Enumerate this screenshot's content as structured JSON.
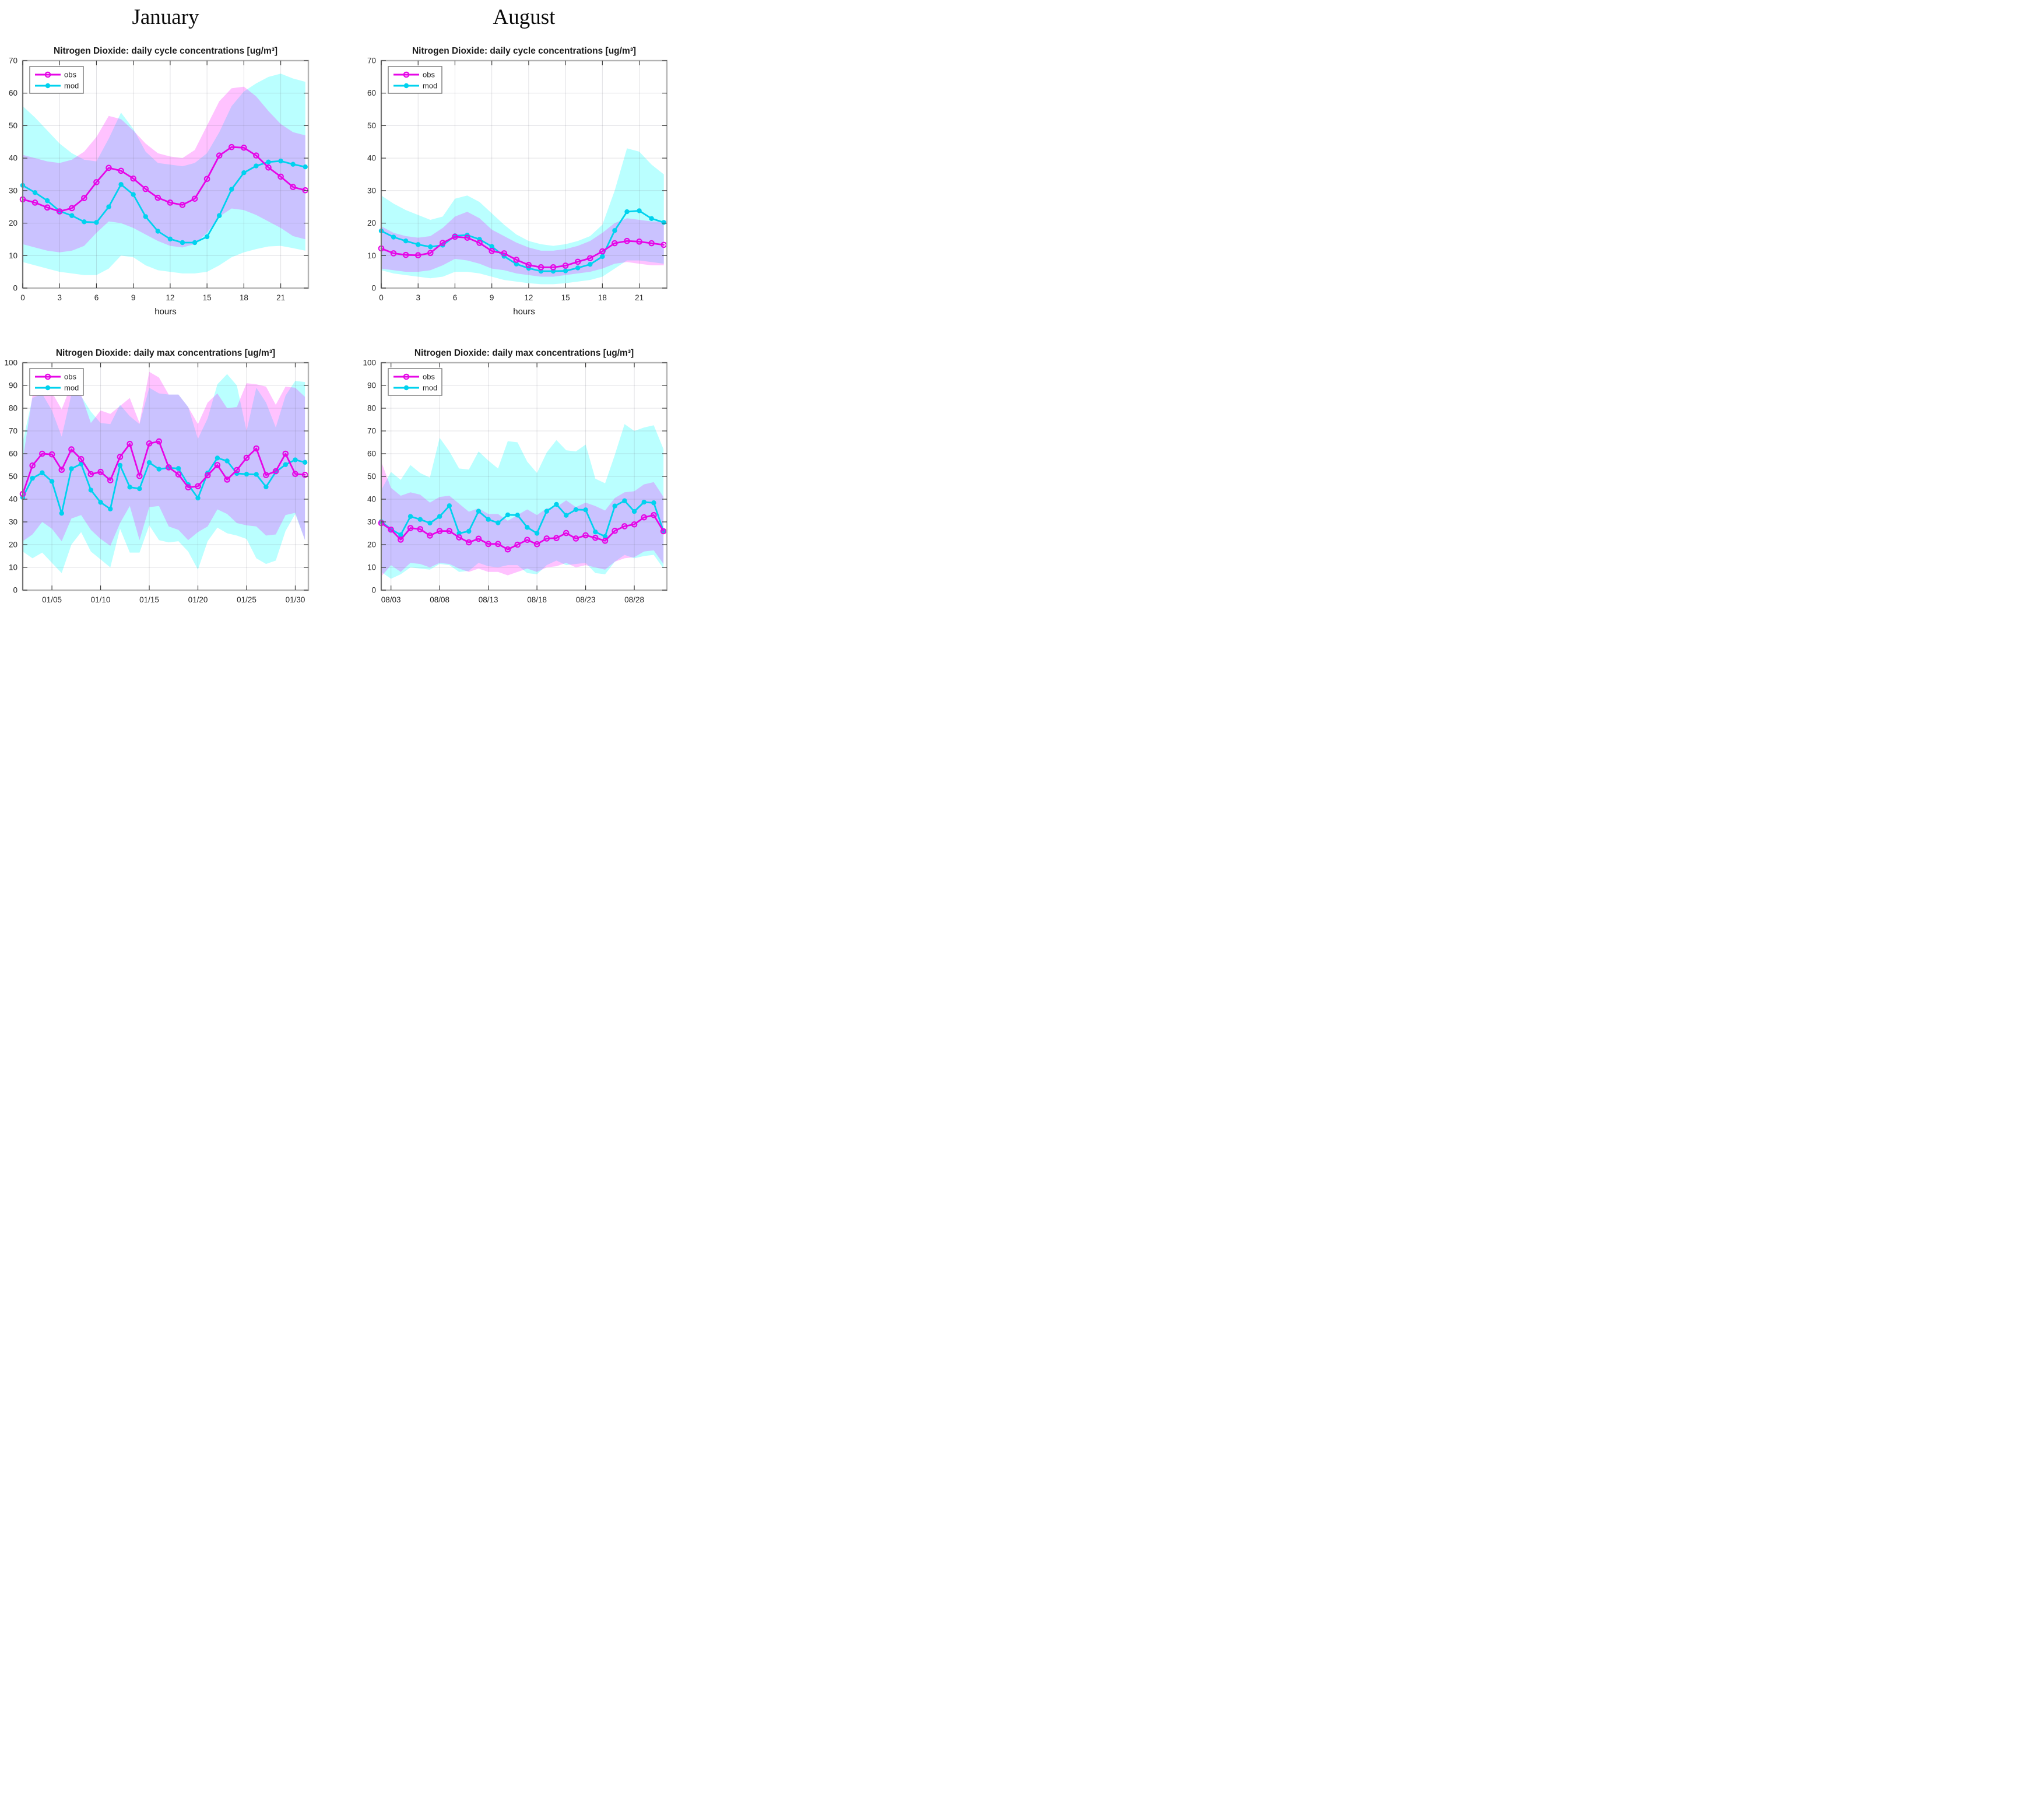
{
  "months": {
    "left": "January",
    "right": "August"
  },
  "legend": {
    "obs_label": "obs",
    "mod_label": "mod"
  },
  "colors": {
    "obs_line": "#e606e6",
    "mod_line": "#00d2ee",
    "obs_band": "rgba(255,0,255,0.24)",
    "mod_band": "rgba(0,255,255,0.27)",
    "grid": "rgba(105,105,120,0.20)",
    "box": "#b3b3b3",
    "axis": "#5f5f5f",
    "tick": "#3a3a3a",
    "tick_label": "#262626",
    "title": "#1a1a1a"
  },
  "chart_data": [
    {
      "id": "january-daily-cycle",
      "type": "line",
      "title": "Nitrogen Dioxide: daily cycle concentrations [ug/m³]",
      "xlabel": "hours",
      "xlim": [
        0,
        23.25
      ],
      "ylim": [
        0,
        70
      ],
      "xticks": [
        0,
        3,
        6,
        9,
        12,
        15,
        18,
        21
      ],
      "xtick_labels": [
        "0",
        "3",
        "6",
        "9",
        "12",
        "15",
        "18",
        "21"
      ],
      "yticks": [
        0,
        10,
        20,
        30,
        40,
        50,
        60,
        70
      ],
      "x": [
        0,
        1,
        2,
        3,
        4,
        5,
        6,
        7,
        8,
        9,
        10,
        11,
        12,
        13,
        14,
        15,
        16,
        17,
        18,
        19,
        20,
        21,
        22,
        23
      ],
      "series": [
        {
          "name": "obs",
          "values": [
            27.3,
            26.3,
            24.8,
            23.6,
            24.6,
            27.7,
            32.6,
            37.0,
            36.1,
            33.7,
            30.5,
            27.8,
            26.3,
            25.6,
            27.5,
            33.6,
            40.8,
            43.4,
            43.2,
            40.8,
            37.1,
            34.3,
            31.1,
            30.1
          ],
          "band_hi": [
            41,
            40,
            39,
            38.5,
            39.5,
            42,
            46.5,
            53,
            52,
            48.5,
            44.5,
            41.5,
            40.5,
            40,
            42.5,
            50,
            57.5,
            61.5,
            62,
            59,
            54.5,
            50.5,
            48,
            47
          ],
          "band_lo": [
            13.5,
            12.5,
            11.5,
            11,
            11.5,
            13,
            17,
            20.5,
            20,
            18.5,
            16.5,
            14.5,
            13,
            12.5,
            13.5,
            17,
            22,
            24.5,
            24,
            22.5,
            20.5,
            18.5,
            16,
            15
          ]
        },
        {
          "name": "mod",
          "values": [
            31.6,
            29.4,
            26.9,
            23.7,
            22.3,
            20.4,
            20.2,
            25.0,
            31.9,
            28.8,
            22.0,
            17.5,
            15.1,
            14.0,
            14.0,
            15.8,
            22.3,
            30.4,
            35.5,
            37.6,
            38.8,
            39.1,
            38.1,
            37.3
          ],
          "band_hi": [
            56,
            52.5,
            48.5,
            44.5,
            41.5,
            39.5,
            39,
            46,
            54,
            49,
            42,
            38.5,
            38,
            37.5,
            38.5,
            41.5,
            48,
            56,
            60.5,
            63,
            65,
            66,
            64.5,
            63.5
          ],
          "band_lo": [
            8,
            7,
            6,
            5,
            4.5,
            4,
            4,
            6,
            10,
            9.5,
            7,
            5.5,
            5,
            4.5,
            4.5,
            5,
            7,
            9.5,
            11,
            12,
            12.8,
            13,
            12.3,
            11.5
          ]
        }
      ]
    },
    {
      "id": "august-daily-cycle",
      "type": "line",
      "title": "Nitrogen Dioxide: daily cycle concentrations [ug/m³]",
      "xlabel": "hours",
      "xlim": [
        0,
        23.25
      ],
      "ylim": [
        0,
        70
      ],
      "xticks": [
        0,
        3,
        6,
        9,
        12,
        15,
        18,
        21
      ],
      "xtick_labels": [
        "0",
        "3",
        "6",
        "9",
        "12",
        "15",
        "18",
        "21"
      ],
      "yticks": [
        0,
        10,
        20,
        30,
        40,
        50,
        60,
        70
      ],
      "x": [
        0,
        1,
        2,
        3,
        4,
        5,
        6,
        7,
        8,
        9,
        10,
        11,
        12,
        13,
        14,
        15,
        16,
        17,
        18,
        19,
        20,
        21,
        22,
        23
      ],
      "series": [
        {
          "name": "obs",
          "values": [
            12.2,
            10.7,
            10.2,
            10.1,
            10.8,
            13.9,
            15.8,
            15.5,
            13.9,
            11.4,
            10.7,
            8.7,
            7.1,
            6.4,
            6.4,
            6.9,
            8.1,
            9.2,
            11.3,
            13.8,
            14.5,
            14.3,
            13.8,
            13.3
          ],
          "band_hi": [
            19,
            17,
            16,
            15.5,
            16,
            18.5,
            22,
            23.5,
            21.5,
            18,
            16,
            14,
            12.5,
            11.5,
            11.5,
            12,
            13,
            14.5,
            17,
            20,
            21.5,
            21,
            20.5,
            20.5
          ],
          "band_lo": [
            6,
            5.5,
            5,
            5,
            5.5,
            7,
            9,
            8.5,
            7.5,
            6,
            5.5,
            4.5,
            4,
            3.5,
            3.5,
            4,
            4.5,
            5,
            6,
            7.5,
            8,
            7.5,
            7,
            7
          ]
        },
        {
          "name": "mod",
          "values": [
            17.6,
            15.7,
            14.5,
            13.4,
            12.7,
            13.2,
            16.1,
            16.3,
            15.0,
            12.8,
            9.8,
            7.4,
            6.1,
            5.2,
            5.2,
            5.3,
            6.2,
            7.3,
            9.7,
            17.7,
            23.5,
            23.8,
            21.4,
            20.2
          ],
          "band_hi": [
            28.5,
            26,
            24,
            22.5,
            21,
            22,
            27.5,
            28.5,
            26.5,
            23,
            19.5,
            16.5,
            14.5,
            13.5,
            13,
            13.5,
            14.5,
            16,
            19.5,
            30,
            43,
            42,
            38,
            35
          ],
          "band_lo": [
            5.5,
            4.5,
            4,
            3.5,
            3,
            3.5,
            5,
            5,
            4.5,
            3.5,
            2.5,
            2,
            1.5,
            1.2,
            1.2,
            1.5,
            2,
            2.5,
            3.5,
            6,
            8.5,
            8.5,
            8,
            7.5
          ]
        }
      ]
    },
    {
      "id": "january-daily-max",
      "type": "line",
      "title": "Nitrogen Dioxide: daily max concentrations [ug/m³]",
      "xlabel": "",
      "xlim": [
        2,
        31.35
      ],
      "ylim": [
        0,
        100
      ],
      "xticks": [
        5,
        10,
        15,
        20,
        25,
        30
      ],
      "xtick_labels": [
        "01/05",
        "01/10",
        "01/15",
        "01/20",
        "01/25",
        "01/30"
      ],
      "yticks": [
        0,
        10,
        20,
        30,
        40,
        50,
        60,
        70,
        80,
        90,
        100
      ],
      "x": [
        2,
        3,
        4,
        5,
        6,
        7,
        8,
        9,
        10,
        11,
        12,
        13,
        14,
        15,
        16,
        17,
        18,
        19,
        20,
        21,
        22,
        23,
        24,
        25,
        26,
        27,
        28,
        29,
        30,
        31
      ],
      "series": [
        {
          "name": "obs",
          "values": [
            42.3,
            54.8,
            60.0,
            59.7,
            52.9,
            61.9,
            57.6,
            51.0,
            52.0,
            48.3,
            58.6,
            64.3,
            50.2,
            64.5,
            65.4,
            54.0,
            50.9,
            45.2,
            45.7,
            50.5,
            55.0,
            48.6,
            52.8,
            58.2,
            62.3,
            50.6,
            52.3,
            60.0,
            51.1,
            50.7
          ],
          "band_hi": [
            57,
            85.5,
            89.5,
            87,
            79.5,
            90.5,
            86,
            73.5,
            79,
            77.5,
            81,
            84.5,
            73.5,
            96,
            93.5,
            86,
            86,
            80.5,
            73,
            82.5,
            86.5,
            80,
            80.5,
            91,
            90.5,
            89.5,
            81.5,
            89.5,
            89,
            85
          ],
          "band_lo": [
            21.5,
            24.5,
            30,
            27,
            21.5,
            31.5,
            33,
            26.5,
            22.5,
            19.5,
            29.5,
            37,
            22,
            36.5,
            37,
            28,
            26.5,
            22,
            25.5,
            28,
            35.5,
            33.5,
            29.5,
            28.5,
            28,
            24,
            24.5,
            33,
            34,
            22
          ]
        },
        {
          "name": "mod",
          "values": [
            40.8,
            49.2,
            51.6,
            47.8,
            33.8,
            53.4,
            55.5,
            44.0,
            38.6,
            35.7,
            54.9,
            45.3,
            44.6,
            56.1,
            53.2,
            53.8,
            53.5,
            46.4,
            40.5,
            51.5,
            58.1,
            56.8,
            51.3,
            51.0,
            50.9,
            45.4,
            52.0,
            55.2,
            57.3,
            56.2
          ],
          "band_hi": [
            65,
            84.5,
            86.3,
            79,
            67.5,
            86,
            85.3,
            78.5,
            73.5,
            73,
            81.5,
            76.5,
            73,
            89,
            86.5,
            86,
            86,
            80.5,
            66.5,
            75.5,
            90.5,
            95,
            90,
            70,
            89,
            82.5,
            71.5,
            85.5,
            92,
            91.5
          ],
          "band_lo": [
            17,
            14,
            16.5,
            12,
            7.5,
            20,
            25.5,
            17,
            13.5,
            10,
            27,
            16.5,
            16.5,
            28.5,
            22,
            21,
            21.5,
            17,
            9,
            21.5,
            27.5,
            25,
            24,
            22.5,
            14,
            11.5,
            13,
            26,
            33.5,
            22
          ]
        }
      ]
    },
    {
      "id": "august-daily-max",
      "type": "line",
      "title": "Nitrogen Dioxide: daily max concentrations [ug/m³]",
      "xlabel": "",
      "xlim": [
        2,
        31.35
      ],
      "ylim": [
        0,
        100
      ],
      "xticks": [
        3,
        8,
        13,
        18,
        23,
        28
      ],
      "xtick_labels": [
        "08/03",
        "08/08",
        "08/13",
        "08/18",
        "08/23",
        "08/28"
      ],
      "yticks": [
        0,
        10,
        20,
        30,
        40,
        50,
        60,
        70,
        80,
        90,
        100
      ],
      "x": [
        2,
        3,
        4,
        5,
        6,
        7,
        8,
        9,
        10,
        11,
        12,
        13,
        14,
        15,
        16,
        17,
        18,
        19,
        20,
        21,
        22,
        23,
        24,
        25,
        26,
        27,
        28,
        29,
        30,
        31
      ],
      "series": [
        {
          "name": "obs",
          "values": [
            29.5,
            26.6,
            22.2,
            27.3,
            26.8,
            24.0,
            26.0,
            26.0,
            23.2,
            21.0,
            22.6,
            20.3,
            20.3,
            17.9,
            20.0,
            22.1,
            20.2,
            22.7,
            22.9,
            25.1,
            22.7,
            24.1,
            23.0,
            21.7,
            26.1,
            28.1,
            28.9,
            32.0,
            33.0,
            25.9
          ],
          "band_hi": [
            56.5,
            45,
            41.5,
            43,
            42,
            38.5,
            41,
            41.5,
            38,
            34.5,
            36,
            33.5,
            33.5,
            30.5,
            33,
            35.5,
            33,
            36,
            36.5,
            39.5,
            36.5,
            38.5,
            37,
            35,
            40.5,
            43,
            43.5,
            46.5,
            47.5,
            41
          ],
          "band_lo": [
            6,
            11,
            8,
            12,
            11.5,
            10,
            12,
            11.5,
            9.5,
            8,
            9.5,
            8,
            8,
            6.5,
            8,
            9.5,
            8,
            10,
            10.5,
            12,
            10,
            11,
            10,
            9,
            12.5,
            14,
            14.5,
            17,
            17.5,
            11.5
          ]
        },
        {
          "name": "mod",
          "values": [
            30.1,
            26.8,
            24.3,
            32.4,
            31.1,
            29.5,
            32.4,
            37.1,
            25.0,
            25.9,
            34.7,
            31.1,
            29.6,
            33.1,
            33.0,
            27.6,
            25.0,
            34.7,
            37.7,
            32.9,
            35.4,
            35.3,
            25.6,
            23.6,
            37.0,
            39.3,
            34.6,
            38.7,
            38.4,
            25.9
          ],
          "band_hi": [
            44,
            52,
            48.5,
            55,
            51.5,
            49.5,
            67,
            61,
            53.5,
            53,
            61,
            57,
            53.5,
            65.5,
            65,
            56.5,
            51.5,
            60.5,
            66,
            61.5,
            61,
            64,
            49,
            47,
            59.5,
            73,
            70,
            71.5,
            72.5,
            62
          ],
          "band_lo": [
            8,
            5,
            7,
            10,
            9.5,
            9,
            11.5,
            11,
            8,
            8.5,
            12,
            10.5,
            10,
            11,
            11,
            7.5,
            7,
            11,
            13,
            11,
            11.5,
            12,
            7.5,
            7,
            12.5,
            15.5,
            14,
            15,
            15.5,
            9.5
          ]
        }
      ]
    }
  ]
}
